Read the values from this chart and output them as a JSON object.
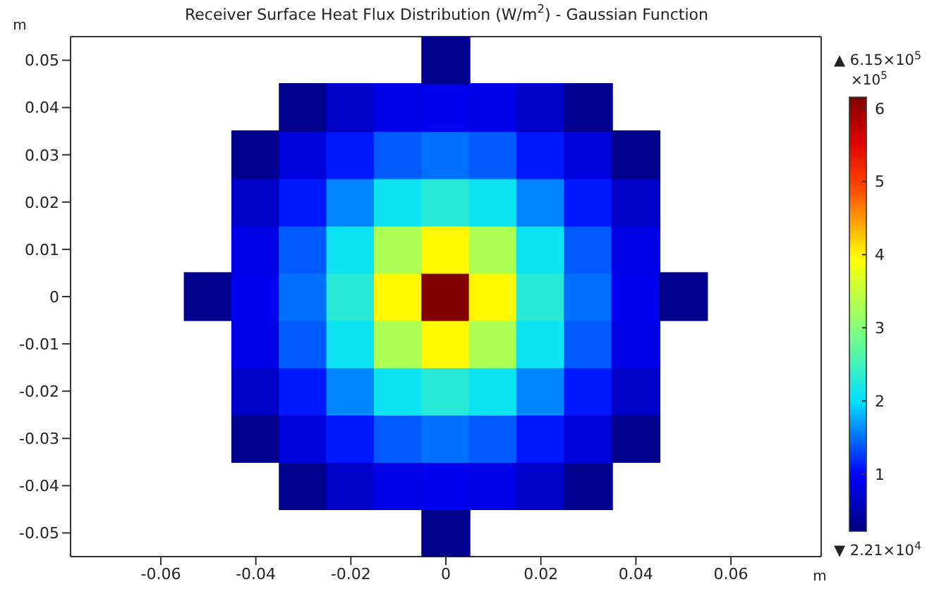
{
  "chart_data": {
    "type": "scatter",
    "title": "Receiver Surface Heat Flux Distribution (W/m$^{2}$) - Gaussian Function",
    "xlabel": "m",
    "ylabel": "m",
    "clabel": "×10$^{5}$",
    "annotations": [
      "▲ 6.15×10$^{5}$",
      "▼ 2.21×10$^{4}$"
    ],
    "marker": "square",
    "xlim": [
      -0.079,
      0.079
    ],
    "xticks": [
      -0.06,
      -0.04,
      -0.02,
      0,
      0.02,
      0.04,
      0.06
    ],
    "ylim": [
      -0.055,
      0.055
    ],
    "yticks": [
      -0.05,
      -0.04,
      -0.03,
      -0.02,
      -0.01,
      0,
      0.01,
      0.02,
      0.03,
      0.04,
      0.05
    ],
    "clim": [
      0.221,
      6.15
    ],
    "cticks": [
      1,
      2,
      3,
      4,
      5,
      6
    ],
    "x": [
      -0.05,
      -0.04,
      -0.04,
      -0.04,
      -0.04,
      -0.04,
      -0.04,
      -0.04,
      -0.03,
      -0.03,
      -0.03,
      -0.03,
      -0.03,
      -0.03,
      -0.03,
      -0.03,
      -0.03,
      -0.02,
      -0.02,
      -0.02,
      -0.02,
      -0.02,
      -0.02,
      -0.02,
      -0.02,
      -0.02,
      -0.01,
      -0.01,
      -0.01,
      -0.01,
      -0.01,
      -0.01,
      -0.01,
      -0.01,
      -0.01,
      0,
      0,
      0,
      0,
      0,
      0,
      0,
      0,
      0,
      0,
      0,
      0.01,
      0.01,
      0.01,
      0.01,
      0.01,
      0.01,
      0.01,
      0.01,
      0.01,
      0.02,
      0.02,
      0.02,
      0.02,
      0.02,
      0.02,
      0.02,
      0.02,
      0.02,
      0.03,
      0.03,
      0.03,
      0.03,
      0.03,
      0.03,
      0.03,
      0.03,
      0.03,
      0.04,
      0.04,
      0.04,
      0.04,
      0.04,
      0.04,
      0.04,
      0.05
    ],
    "values": [
      0,
      -0.03,
      -0.02,
      -0.01,
      0,
      0.01,
      0.02,
      0.03,
      -0.04,
      -0.03,
      -0.02,
      -0.01,
      0,
      0.01,
      0.02,
      0.03,
      0.04,
      -0.04,
      -0.03,
      -0.02,
      -0.01,
      0,
      0.01,
      0.02,
      0.03,
      0.04,
      -0.04,
      -0.03,
      -0.02,
      -0.01,
      0,
      0.01,
      0.02,
      0.03,
      0.04,
      -0.05,
      -0.04,
      -0.03,
      -0.02,
      -0.01,
      0,
      0.01,
      0.02,
      0.03,
      0.04,
      0.05,
      -0.04,
      -0.03,
      -0.02,
      -0.01,
      0,
      0.01,
      0.02,
      0.03,
      0.04,
      -0.04,
      -0.03,
      -0.02,
      -0.01,
      0,
      0.01,
      0.02,
      0.03,
      0.04,
      -0.04,
      -0.03,
      -0.02,
      -0.01,
      0,
      0.01,
      0.02,
      0.03,
      0.04,
      -0.03,
      -0.02,
      -0.01,
      0,
      0.01,
      0.02,
      0.03,
      0
    ],
    "cvalues": [
      0.3,
      0.3,
      0.65,
      0.85,
      0.9,
      0.85,
      0.65,
      0.3,
      0.3,
      0.8,
      1.1,
      1.4,
      1.5,
      1.4,
      1.1,
      0.8,
      0.3,
      0.65,
      1.1,
      1.6,
      2.1,
      2.3,
      2.1,
      1.6,
      1.1,
      0.65,
      0.85,
      1.4,
      2.1,
      3.3,
      4.0,
      3.3,
      2.1,
      1.4,
      0.85,
      0.3,
      0.9,
      1.5,
      2.3,
      4.0,
      6.15,
      4.0,
      2.3,
      1.5,
      0.9,
      0.3,
      0.85,
      1.4,
      2.1,
      3.3,
      4.0,
      3.3,
      2.1,
      1.4,
      0.85,
      0.65,
      1.1,
      1.6,
      2.1,
      2.3,
      2.1,
      1.6,
      1.1,
      0.65,
      0.3,
      0.8,
      1.1,
      1.4,
      1.5,
      1.4,
      1.1,
      0.8,
      0.3,
      0.3,
      0.65,
      0.85,
      0.9,
      0.85,
      0.65,
      0.3,
      0.3
    ]
  }
}
